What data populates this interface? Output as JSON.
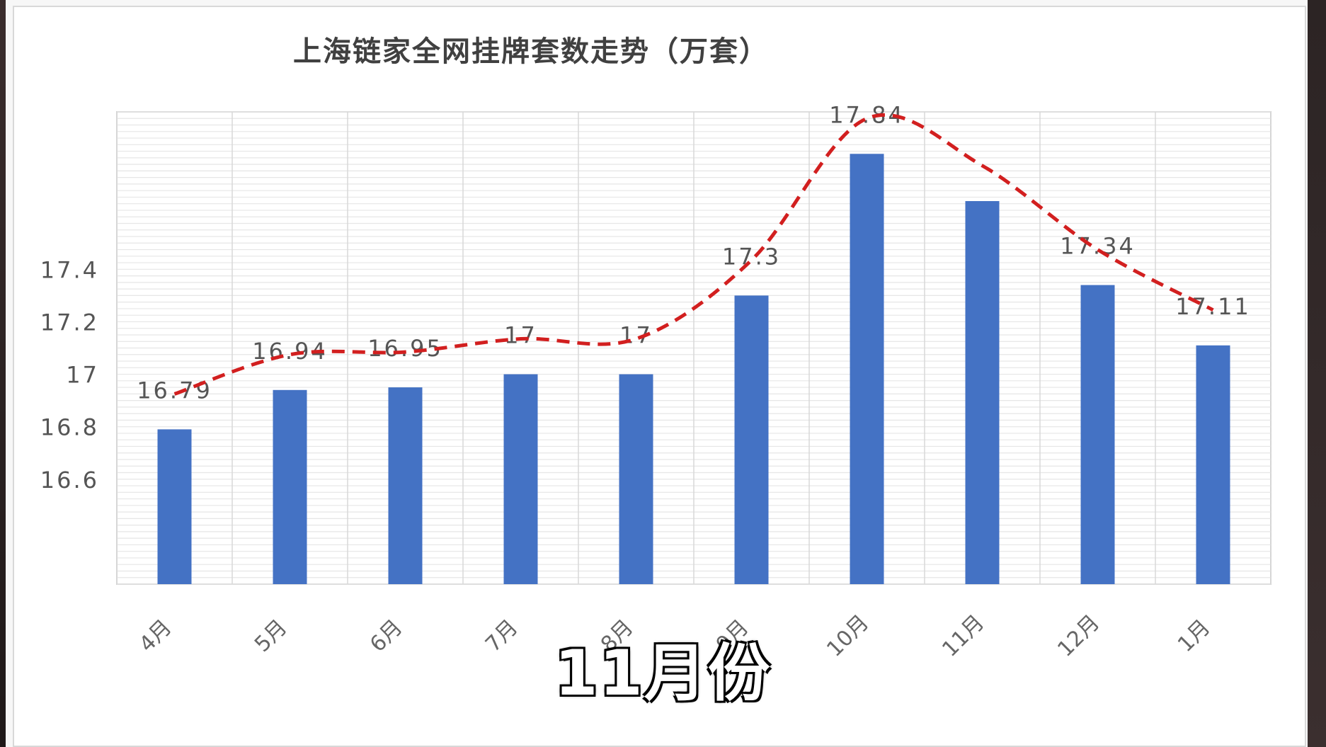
{
  "chart_data": {
    "type": "bar",
    "title": "上海链家全网挂牌套数走势（万套）",
    "categories": [
      "4月",
      "5月",
      "6月",
      "7月",
      "8月",
      "9月",
      "10月",
      "11月",
      "12月",
      "1月"
    ],
    "values": [
      16.79,
      16.94,
      16.95,
      17,
      17,
      17.3,
      17.84,
      17.66,
      17.34,
      17.11
    ],
    "data_labels": [
      "16.79",
      "16.94",
      "16.95",
      "17",
      "17",
      "17.3",
      "17.84",
      "",
      "17.34",
      "17.11"
    ],
    "y_ticks": [
      "16.6",
      "16.8",
      "17",
      "17.2",
      "17.4"
    ],
    "y_tick_values": [
      16.6,
      16.8,
      17,
      17.2,
      17.4
    ],
    "ylim": [
      16.2,
      18.0
    ],
    "grid": true,
    "bar_color": "#4472c4",
    "trend_line": {
      "style": "dashed",
      "color": "#d21f1f"
    }
  },
  "caption": "11月份"
}
